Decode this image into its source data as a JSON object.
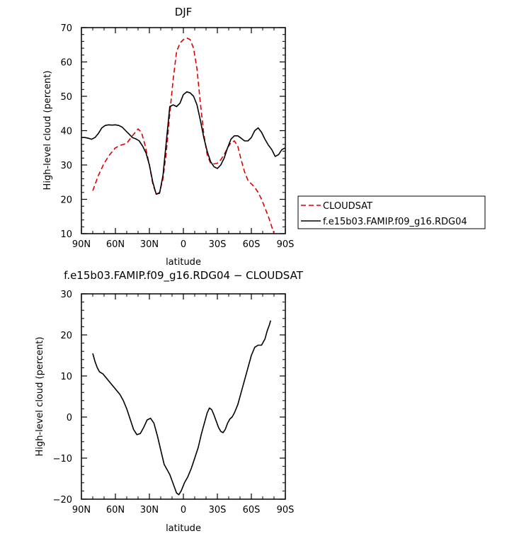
{
  "chart_data": [
    {
      "type": "line",
      "title": "DJF",
      "xlabel": "latitude",
      "ylabel": "High-level cloud (percent)",
      "xlim": [
        -90,
        90
      ],
      "ylim": [
        10,
        70
      ],
      "x_ticks": [
        -90,
        -60,
        -30,
        0,
        30,
        60,
        90
      ],
      "x_tick_labels": [
        "90N",
        "60N",
        "30N",
        "0",
        "30S",
        "60S",
        "90S"
      ],
      "y_ticks": [
        10,
        20,
        30,
        40,
        50,
        60,
        70
      ],
      "y_tick_labels": [
        "10",
        "20",
        "30",
        "40",
        "50",
        "60",
        "70"
      ],
      "legend_position": "right-outside",
      "series": [
        {
          "name": "CLOUDSAT",
          "color": "#e00000",
          "dash": "dashed",
          "points": [
            [
              -80,
              22.5
            ],
            [
              -75,
              27
            ],
            [
              -70,
              30.5
            ],
            [
              -65,
              33
            ],
            [
              -60,
              35
            ],
            [
              -55,
              35.8
            ],
            [
              -50,
              36.3
            ],
            [
              -45,
              38.5
            ],
            [
              -40,
              40.5
            ],
            [
              -37,
              39.5
            ],
            [
              -34,
              36
            ],
            [
              -30,
              30
            ],
            [
              -27,
              24.5
            ],
            [
              -24,
              21.5
            ],
            [
              -21,
              22
            ],
            [
              -18,
              26
            ],
            [
              -15,
              34
            ],
            [
              -12,
              45
            ],
            [
              -9,
              55
            ],
            [
              -6,
              63
            ],
            [
              -3,
              65.5
            ],
            [
              0,
              66.5
            ],
            [
              3,
              67
            ],
            [
              6,
              66.5
            ],
            [
              9,
              64
            ],
            [
              12,
              58
            ],
            [
              15,
              48
            ],
            [
              18,
              39
            ],
            [
              21,
              33
            ],
            [
              24,
              30.5
            ],
            [
              27,
              30.3
            ],
            [
              30,
              30.5
            ],
            [
              33,
              31.5
            ],
            [
              36,
              33
            ],
            [
              39,
              35
            ],
            [
              42,
              36.5
            ],
            [
              45,
              37
            ],
            [
              48,
              35.5
            ],
            [
              51,
              31.5
            ],
            [
              54,
              28
            ],
            [
              57,
              25.5
            ],
            [
              60,
              24.5
            ],
            [
              63,
              23.5
            ],
            [
              66,
              22
            ],
            [
              69,
              20
            ],
            [
              72,
              17.5
            ],
            [
              75,
              15
            ],
            [
              78,
              12
            ],
            [
              80,
              10
            ]
          ]
        },
        {
          "name": "f.e15b03.FAMIP.f09_g16.RDG04",
          "color": "#000000",
          "dash": "solid",
          "points": [
            [
              -90,
              38
            ],
            [
              -87,
              38
            ],
            [
              -84,
              37.8
            ],
            [
              -81,
              37.5
            ],
            [
              -78,
              38
            ],
            [
              -75,
              39.2
            ],
            [
              -72,
              40.8
            ],
            [
              -69,
              41.5
            ],
            [
              -66,
              41.7
            ],
            [
              -63,
              41.6
            ],
            [
              -60,
              41.7
            ],
            [
              -57,
              41.5
            ],
            [
              -54,
              41
            ],
            [
              -51,
              40
            ],
            [
              -48,
              39
            ],
            [
              -45,
              38
            ],
            [
              -42,
              37.6
            ],
            [
              -39,
              37
            ],
            [
              -36,
              35.5
            ],
            [
              -33,
              33.5
            ],
            [
              -30,
              30
            ],
            [
              -27,
              25
            ],
            [
              -24,
              21.5
            ],
            [
              -21,
              21.8
            ],
            [
              -18,
              27
            ],
            [
              -15,
              37
            ],
            [
              -12,
              47
            ],
            [
              -9,
              47.5
            ],
            [
              -6,
              47
            ],
            [
              -3,
              48
            ],
            [
              0,
              50.5
            ],
            [
              3,
              51.3
            ],
            [
              6,
              51
            ],
            [
              9,
              50
            ],
            [
              12,
              47.5
            ],
            [
              15,
              43
            ],
            [
              18,
              38
            ],
            [
              21,
              34
            ],
            [
              24,
              31
            ],
            [
              27,
              29.5
            ],
            [
              30,
              29
            ],
            [
              33,
              30
            ],
            [
              36,
              32
            ],
            [
              39,
              35
            ],
            [
              42,
              37.5
            ],
            [
              45,
              38.5
            ],
            [
              48,
              38.5
            ],
            [
              51,
              37.8
            ],
            [
              54,
              37
            ],
            [
              57,
              37
            ],
            [
              60,
              38
            ],
            [
              63,
              40
            ],
            [
              66,
              40.8
            ],
            [
              69,
              39.5
            ],
            [
              72,
              37.5
            ],
            [
              75,
              35.8
            ],
            [
              78,
              34.5
            ],
            [
              81,
              32.5
            ],
            [
              84,
              33
            ],
            [
              87,
              34.5
            ],
            [
              90,
              35
            ]
          ]
        }
      ]
    },
    {
      "type": "line",
      "title": "f.e15b03.FAMIP.f09_g16.RDG04 − CLOUDSAT",
      "xlabel": "latitude",
      "ylabel": "High-level cloud (percent)",
      "xlim": [
        -90,
        90
      ],
      "ylim": [
        -20,
        30
      ],
      "x_ticks": [
        -90,
        -60,
        -30,
        0,
        30,
        60,
        90
      ],
      "x_tick_labels": [
        "90N",
        "60N",
        "30N",
        "0",
        "30S",
        "60S",
        "90S"
      ],
      "y_ticks": [
        -20,
        -10,
        0,
        10,
        20,
        30
      ],
      "y_tick_labels": [
        "−20",
        "−10",
        "0",
        "10",
        "20",
        "30"
      ],
      "series": [
        {
          "color": "#000000",
          "dash": "solid",
          "points": [
            [
              -80,
              15.5
            ],
            [
              -78,
              13.5
            ],
            [
              -76,
              12
            ],
            [
              -74,
              11
            ],
            [
              -71,
              10.5
            ],
            [
              -68,
              9.5
            ],
            [
              -65,
              8.5
            ],
            [
              -62,
              7.5
            ],
            [
              -59,
              6.5
            ],
            [
              -56,
              5.5
            ],
            [
              -53,
              4
            ],
            [
              -50,
              2
            ],
            [
              -47,
              -0.5
            ],
            [
              -44,
              -3
            ],
            [
              -41,
              -4.3
            ],
            [
              -38,
              -4
            ],
            [
              -35,
              -2.5
            ],
            [
              -32,
              -0.7
            ],
            [
              -29,
              -0.3
            ],
            [
              -26,
              -1.5
            ],
            [
              -23,
              -4.5
            ],
            [
              -20,
              -8
            ],
            [
              -17,
              -11.5
            ],
            [
              -14,
              -13
            ],
            [
              -12,
              -14
            ],
            [
              -10,
              -15.5
            ],
            [
              -8,
              -17
            ],
            [
              -6,
              -18.5
            ],
            [
              -4,
              -18.9
            ],
            [
              -2,
              -18
            ],
            [
              1,
              -16
            ],
            [
              4,
              -14.5
            ],
            [
              7,
              -12.5
            ],
            [
              10,
              -10
            ],
            [
              13,
              -7.5
            ],
            [
              16,
              -4
            ],
            [
              19,
              -1
            ],
            [
              21,
              1
            ],
            [
              23,
              2.2
            ],
            [
              25,
              1.8
            ],
            [
              27,
              0.5
            ],
            [
              29,
              -1
            ],
            [
              31,
              -2.5
            ],
            [
              33,
              -3.5
            ],
            [
              35,
              -3.8
            ],
            [
              37,
              -3
            ],
            [
              39,
              -1.5
            ],
            [
              41,
              -0.5
            ],
            [
              43,
              0
            ],
            [
              45,
              1
            ],
            [
              48,
              3
            ],
            [
              51,
              6
            ],
            [
              54,
              9
            ],
            [
              57,
              12
            ],
            [
              60,
              15
            ],
            [
              63,
              17
            ],
            [
              66,
              17.5
            ],
            [
              69,
              17.5
            ],
            [
              72,
              19
            ],
            [
              74,
              21
            ],
            [
              76,
              22.5
            ],
            [
              77,
              23.5
            ]
          ]
        }
      ]
    }
  ]
}
